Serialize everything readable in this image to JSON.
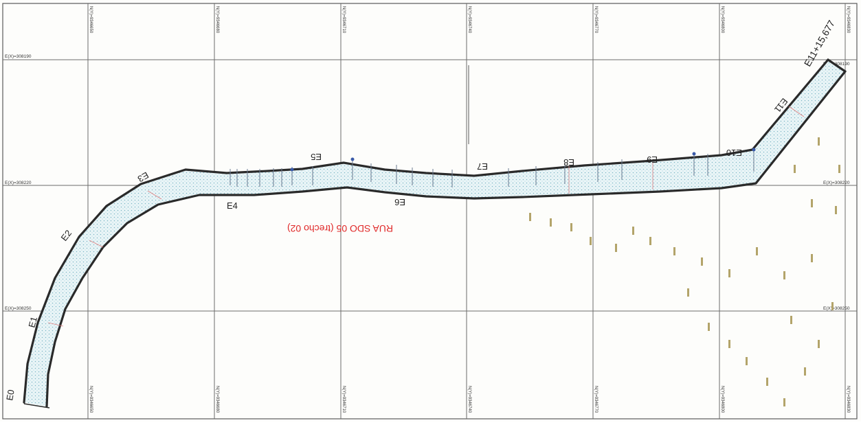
{
  "road_label": "RUA SDO 05 (trecho 02)",
  "end_chainage": "E11+15,677",
  "stations": [
    "E0",
    "E1",
    "E2",
    "E3",
    "E4",
    "E5",
    "E6",
    "E7",
    "E8",
    "E9",
    "E10",
    "E11"
  ],
  "northings_top": [
    "N(Y)=9346650",
    "N(Y)=9346680",
    "N(Y)=9346710",
    "N(Y)=9346740",
    "N(Y)=9346770",
    "N(Y)=9346800",
    "N(Y)=9346830"
  ],
  "northings_bottom": [
    "N(Y)=9346650",
    "N(Y)=9346680",
    "N(Y)=9346710",
    "N(Y)=9346740",
    "N(Y)=9346770",
    "N(Y)=9346800",
    "N(Y)=9346830"
  ],
  "eastings_left": [
    "E(X)=308190",
    "E(X)=308220",
    "E(X)=308250"
  ],
  "eastings_right": [
    "E(X)=308190",
    "E(X)=308220",
    "E(X)=308250"
  ],
  "colors": {
    "road_label": "#e02828",
    "edge": "#2a2a2a",
    "fill_dots": "#7fb8c8"
  }
}
